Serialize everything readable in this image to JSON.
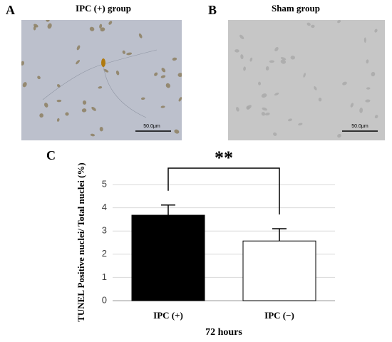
{
  "panels": [
    {
      "label": "A",
      "title": "IPC (+) group",
      "scale_bar": "50.0μm"
    },
    {
      "label": "B",
      "title": "Sham group",
      "scale_bar": "50.0μm"
    }
  ],
  "chart_data": {
    "type": "bar",
    "label": "C",
    "categories": [
      "IPC (+)",
      "IPC (−)"
    ],
    "values": [
      3.68,
      2.57
    ],
    "errors": [
      0.44,
      0.53
    ],
    "colors": [
      "#000000",
      "#ffffff"
    ],
    "ylim": [
      0,
      5
    ],
    "yticks": [
      0,
      1,
      2,
      3,
      4,
      5
    ],
    "grid": true,
    "y_label": "TUNEL Positive nuclei/ Total nuclei (%)",
    "x_label": "72 hours",
    "annotation": "**"
  }
}
